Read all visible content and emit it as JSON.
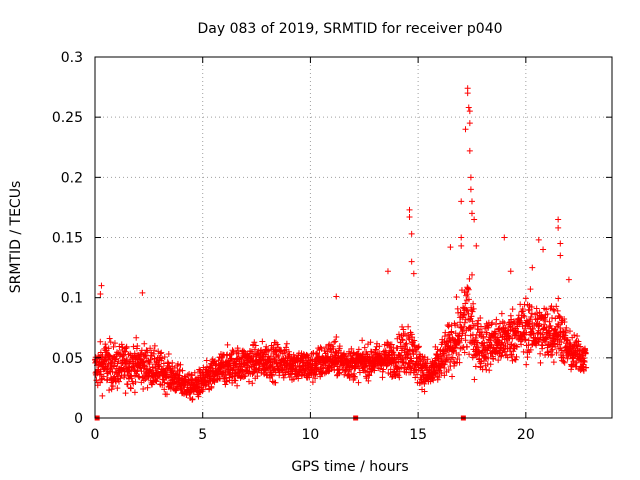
{
  "chart_data": {
    "type": "scatter",
    "title": "Day 083 of 2019, SRMTID for receiver p040",
    "xlabel": "GPS time / hours",
    "ylabel": "SRMTID / TECUs",
    "xlim": [
      0,
      24
    ],
    "ylim": [
      0,
      0.3
    ],
    "x_ticks": [
      0,
      5,
      10,
      15,
      20
    ],
    "x_tick_labels": [
      "0",
      "5",
      "10",
      "15",
      "20"
    ],
    "y_ticks": [
      0,
      0.05,
      0.1,
      0.15,
      0.2,
      0.25,
      0.3
    ],
    "y_tick_labels": [
      "0",
      "0.05",
      "0.1",
      "0.15",
      "0.2",
      "0.25",
      "0.3"
    ],
    "grid": true,
    "marker": "plus",
    "color": "#ff0000",
    "gap_markers_x": [
      0.1,
      12.1,
      17.1
    ],
    "profile": {
      "x": [
        0,
        0.5,
        1,
        2,
        3,
        4,
        4.5,
        5,
        6,
        7,
        8,
        9,
        10,
        11,
        12,
        13,
        14,
        14.5,
        15,
        15.5,
        16,
        16.5,
        17,
        17.3,
        17.6,
        18,
        19,
        20,
        21,
        21.5,
        22,
        22.8
      ],
      "center": [
        0.04,
        0.045,
        0.042,
        0.045,
        0.04,
        0.03,
        0.025,
        0.03,
        0.042,
        0.045,
        0.048,
        0.046,
        0.042,
        0.05,
        0.045,
        0.048,
        0.05,
        0.06,
        0.045,
        0.035,
        0.045,
        0.06,
        0.07,
        0.09,
        0.065,
        0.06,
        0.065,
        0.075,
        0.07,
        0.075,
        0.055,
        0.05
      ],
      "spread": [
        0.02,
        0.025,
        0.022,
        0.022,
        0.018,
        0.015,
        0.012,
        0.015,
        0.018,
        0.018,
        0.018,
        0.017,
        0.016,
        0.018,
        0.015,
        0.016,
        0.018,
        0.03,
        0.02,
        0.015,
        0.02,
        0.025,
        0.035,
        0.06,
        0.03,
        0.025,
        0.025,
        0.03,
        0.03,
        0.03,
        0.02,
        0.015
      ]
    },
    "notable_points": [
      {
        "x": 0.3,
        "y": 0.11
      },
      {
        "x": 0.25,
        "y": 0.103
      },
      {
        "x": 2.2,
        "y": 0.104
      },
      {
        "x": 11.2,
        "y": 0.101
      },
      {
        "x": 13.6,
        "y": 0.122
      },
      {
        "x": 14.6,
        "y": 0.173
      },
      {
        "x": 14.6,
        "y": 0.167
      },
      {
        "x": 14.7,
        "y": 0.153
      },
      {
        "x": 14.7,
        "y": 0.13
      },
      {
        "x": 14.8,
        "y": 0.12
      },
      {
        "x": 16.5,
        "y": 0.142
      },
      {
        "x": 17.0,
        "y": 0.18
      },
      {
        "x": 17.0,
        "y": 0.15
      },
      {
        "x": 17.0,
        "y": 0.143
      },
      {
        "x": 17.2,
        "y": 0.24
      },
      {
        "x": 17.3,
        "y": 0.274
      },
      {
        "x": 17.3,
        "y": 0.27
      },
      {
        "x": 17.35,
        "y": 0.258
      },
      {
        "x": 17.4,
        "y": 0.255
      },
      {
        "x": 17.4,
        "y": 0.245
      },
      {
        "x": 17.4,
        "y": 0.222
      },
      {
        "x": 17.45,
        "y": 0.2
      },
      {
        "x": 17.45,
        "y": 0.19
      },
      {
        "x": 17.5,
        "y": 0.18
      },
      {
        "x": 17.5,
        "y": 0.17
      },
      {
        "x": 17.6,
        "y": 0.165
      },
      {
        "x": 17.7,
        "y": 0.143
      },
      {
        "x": 19.0,
        "y": 0.15
      },
      {
        "x": 19.3,
        "y": 0.122
      },
      {
        "x": 20.3,
        "y": 0.125
      },
      {
        "x": 20.6,
        "y": 0.148
      },
      {
        "x": 20.8,
        "y": 0.14
      },
      {
        "x": 21.5,
        "y": 0.165
      },
      {
        "x": 21.5,
        "y": 0.158
      },
      {
        "x": 21.6,
        "y": 0.145
      },
      {
        "x": 21.6,
        "y": 0.135
      },
      {
        "x": 22.0,
        "y": 0.115
      }
    ]
  }
}
